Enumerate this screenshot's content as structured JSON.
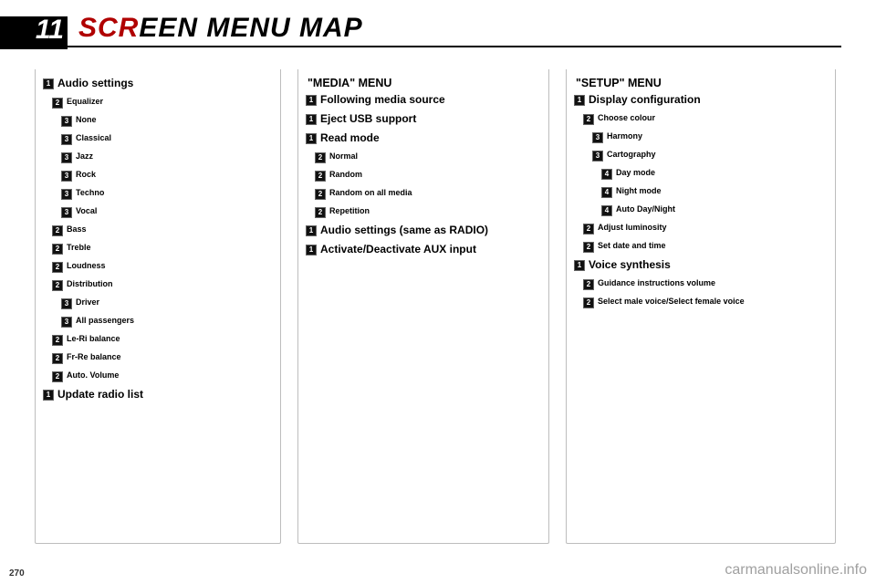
{
  "chapter": {
    "number": "11",
    "title_red": "SCR",
    "title_black": "EEN MENU MAP"
  },
  "page_number": "270",
  "watermark": "carmanualsonline.info",
  "col1": {
    "items": [
      {
        "lvl": 1,
        "indent": 0,
        "big": true,
        "text": "Audio settings"
      },
      {
        "lvl": 2,
        "indent": 1,
        "text": "Equalizer"
      },
      {
        "lvl": 3,
        "indent": 2,
        "text": "None"
      },
      {
        "lvl": 3,
        "indent": 2,
        "text": "Classical"
      },
      {
        "lvl": 3,
        "indent": 2,
        "text": "Jazz"
      },
      {
        "lvl": 3,
        "indent": 2,
        "text": "Rock"
      },
      {
        "lvl": 3,
        "indent": 2,
        "text": "Techno"
      },
      {
        "lvl": 3,
        "indent": 2,
        "text": "Vocal"
      },
      {
        "lvl": 2,
        "indent": 1,
        "text": "Bass"
      },
      {
        "lvl": 2,
        "indent": 1,
        "text": "Treble"
      },
      {
        "lvl": 2,
        "indent": 1,
        "text": "Loudness"
      },
      {
        "lvl": 2,
        "indent": 1,
        "text": "Distribution"
      },
      {
        "lvl": 3,
        "indent": 2,
        "text": "Driver"
      },
      {
        "lvl": 3,
        "indent": 2,
        "text": "All passengers"
      },
      {
        "lvl": 2,
        "indent": 1,
        "text": "Le-Ri balance"
      },
      {
        "lvl": 2,
        "indent": 1,
        "text": "Fr-Re balance"
      },
      {
        "lvl": 2,
        "indent": 1,
        "text": "Auto. Volume"
      },
      {
        "lvl": 1,
        "indent": 0,
        "big": true,
        "text": "Update radio list"
      }
    ]
  },
  "col2": {
    "title": "\"MEDIA\" MENU",
    "items": [
      {
        "lvl": 1,
        "indent": 0,
        "big": true,
        "text": "Following media source"
      },
      {
        "lvl": 1,
        "indent": 0,
        "big": true,
        "text": "Eject USB support"
      },
      {
        "lvl": 1,
        "indent": 0,
        "big": true,
        "text": "Read mode"
      },
      {
        "lvl": 2,
        "indent": 1,
        "text": "Normal"
      },
      {
        "lvl": 2,
        "indent": 1,
        "text": "Random"
      },
      {
        "lvl": 2,
        "indent": 1,
        "text": "Random on all media"
      },
      {
        "lvl": 2,
        "indent": 1,
        "text": "Repetition"
      },
      {
        "lvl": 1,
        "indent": 0,
        "big": true,
        "text": "Audio settings (same as RADIO)"
      },
      {
        "lvl": 1,
        "indent": 0,
        "big": true,
        "text": "Activate/Deactivate AUX input"
      }
    ]
  },
  "col3": {
    "title": "\"SETUP\" MENU",
    "items": [
      {
        "lvl": 1,
        "indent": 0,
        "big": true,
        "text": "Display configuration"
      },
      {
        "lvl": 2,
        "indent": 1,
        "text": "Choose colour"
      },
      {
        "lvl": 3,
        "indent": 2,
        "text": "Harmony"
      },
      {
        "lvl": 3,
        "indent": 2,
        "text": "Cartography"
      },
      {
        "lvl": 4,
        "indent": 3,
        "text": "Day mode"
      },
      {
        "lvl": 4,
        "indent": 3,
        "text": "Night mode"
      },
      {
        "lvl": 4,
        "indent": 3,
        "text": "Auto Day/Night"
      },
      {
        "lvl": 2,
        "indent": 1,
        "text": "Adjust luminosity"
      },
      {
        "lvl": 2,
        "indent": 1,
        "text": "Set date and time"
      },
      {
        "lvl": 1,
        "indent": 0,
        "big": true,
        "text": "Voice synthesis"
      },
      {
        "lvl": 2,
        "indent": 1,
        "text": "Guidance instructions volume"
      },
      {
        "lvl": 2,
        "indent": 1,
        "text": "Select male voice/Select female voice"
      }
    ]
  }
}
